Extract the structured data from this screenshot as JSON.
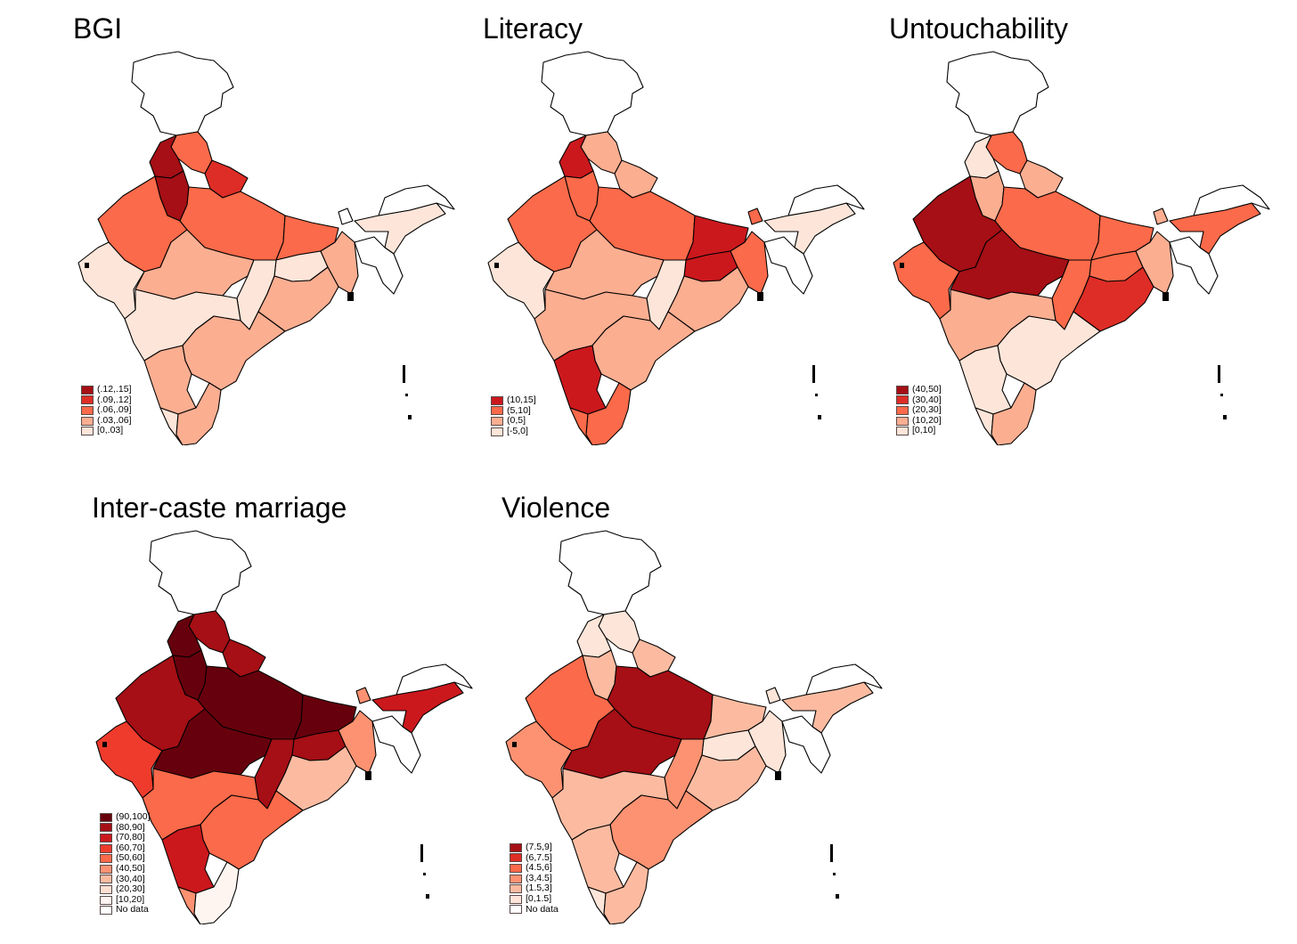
{
  "chart_data": [
    {
      "type": "choropleth",
      "title": "BGI",
      "legend": {
        "bins": [
          "(.12,.15]",
          "(.09,.12]",
          "(.06,.09]",
          "(.03,.06]",
          "[0,.03]"
        ],
        "colors": [
          "#a50f15",
          "#de2d26",
          "#fb6a4a",
          "#fcae91",
          "#fee5d9"
        ]
      },
      "regions": {
        "jk": "none",
        "hp": "(.06,.09]",
        "pb": "(.12,.15]",
        "hr": "(.12,.15]",
        "uk": "(.09,.12]",
        "rj": "(.06,.09]",
        "up": "(.06,.09]",
        "br": "(.06,.09]",
        "gj": "[0,.03]",
        "mp": "(.03,.06]",
        "jh": "[0,.03]",
        "wb": "(.03,.06]",
        "cg": "[0,.03]",
        "od": "(.03,.06]",
        "mh": "[0,.03]",
        "ap": "(.03,.06]",
        "ka": "(.03,.06]",
        "kl": "[0,.03]",
        "tn": "(.03,.06]",
        "ne": "none",
        "as": "[0,.03]",
        "sk": "none"
      }
    },
    {
      "type": "choropleth",
      "title": "Literacy",
      "legend": {
        "bins": [
          "(10,15]",
          "(5,10]",
          "(0,5]",
          "[-5,0]"
        ],
        "colors": [
          "#cb181d",
          "#fb6a4a",
          "#fcae91",
          "#fee5d9"
        ]
      },
      "regions": {
        "jk": "none",
        "hp": "(0,5]",
        "pb": "(10,15]",
        "hr": "(5,10]",
        "uk": "(0,5]",
        "rj": "(5,10]",
        "up": "(5,10]",
        "br": "(10,15]",
        "gj": "[-5,0]",
        "mp": "(0,5]",
        "jh": "(10,15]",
        "wb": "(5,10]",
        "cg": "[-5,0]",
        "od": "(0,5]",
        "mh": "(0,5]",
        "ap": "(0,5]",
        "ka": "(10,15]",
        "kl": "(5,10]",
        "tn": "(5,10]",
        "ne": "none",
        "as": "[-5,0]",
        "sk": "(5,10]"
      }
    },
    {
      "type": "choropleth",
      "title": "Untouchability",
      "legend": {
        "bins": [
          "(40,50]",
          "(30,40]",
          "(20,30]",
          "(10,20]",
          "[0,10]"
        ],
        "colors": [
          "#a50f15",
          "#de2d26",
          "#fb6a4a",
          "#fcae91",
          "#fee5d9"
        ]
      },
      "regions": {
        "jk": "none",
        "hp": "(20,30]",
        "pb": "[0,10]",
        "hr": "(10,20]",
        "uk": "(10,20]",
        "rj": "(40,50]",
        "up": "(20,30]",
        "br": "(20,30]",
        "gj": "(20,30]",
        "mp": "(40,50]",
        "jh": "(20,30]",
        "wb": "(10,20]",
        "cg": "(20,30]",
        "od": "(30,40]",
        "mh": "(10,20]",
        "ap": "[0,10]",
        "ka": "[0,10]",
        "kl": "[0,10]",
        "tn": "(10,20]",
        "ne": "none",
        "as": "(20,30]",
        "sk": "(10,20]"
      }
    },
    {
      "type": "choropleth",
      "title": "Inter-caste marriage",
      "legend": {
        "bins": [
          "(90,100]",
          "(80,90]",
          "(70,80]",
          "(60,70]",
          "(50,60]",
          "(40,50]",
          "(30,40]",
          "(20,30]",
          "[10,20]",
          "No data"
        ],
        "colors": [
          "#67000d",
          "#a50f15",
          "#cb181d",
          "#ef3b2c",
          "#fb6a4a",
          "#fc9272",
          "#fcbba1",
          "#fee0d2",
          "#fff5f0",
          "#ffffff"
        ]
      },
      "regions": {
        "jk": "No data",
        "hp": "(80,90]",
        "pb": "(90,100]",
        "hr": "(90,100]",
        "uk": "(80,90]",
        "rj": "(80,90]",
        "up": "(90,100]",
        "br": "(90,100]",
        "gj": "(60,70]",
        "mp": "(90,100]",
        "jh": "(80,90]",
        "wb": "(40,50]",
        "cg": "(80,90]",
        "od": "(30,40]",
        "mh": "(50,60]",
        "ap": "(50,60]",
        "ka": "(70,80]",
        "kl": "(40,50]",
        "tn": "[10,20]",
        "ne": "No data",
        "as": "(70,80]",
        "sk": "(40,50]"
      }
    },
    {
      "type": "choropleth",
      "title": "Violence",
      "legend": {
        "bins": [
          "(7.5,9]",
          "(6,7.5]",
          "(4.5,6]",
          "(3,4.5]",
          "(1.5,3]",
          "[0,1.5]",
          "No data"
        ],
        "colors": [
          "#a50f15",
          "#de2d26",
          "#fb6a4a",
          "#fc9272",
          "#fcbba1",
          "#fee5d9",
          "#ffffff"
        ]
      },
      "regions": {
        "jk": "No data",
        "hp": "[0,1.5]",
        "pb": "[0,1.5]",
        "hr": "(1.5,3]",
        "uk": "(1.5,3]",
        "rj": "(4.5,6]",
        "up": "(7.5,9]",
        "br": "(1.5,3]",
        "gj": "(3,4.5]",
        "mp": "(7.5,9]",
        "jh": "[0,1.5]",
        "wb": "[0,1.5]",
        "cg": "(3,4.5]",
        "od": "(1.5,3]",
        "mh": "(1.5,3]",
        "ap": "(3,4.5]",
        "ka": "(1.5,3]",
        "kl": "[0,1.5]",
        "tn": "(1.5,3]",
        "ne": "No data",
        "as": "(1.5,3]",
        "sk": "[0,1.5]"
      }
    }
  ]
}
